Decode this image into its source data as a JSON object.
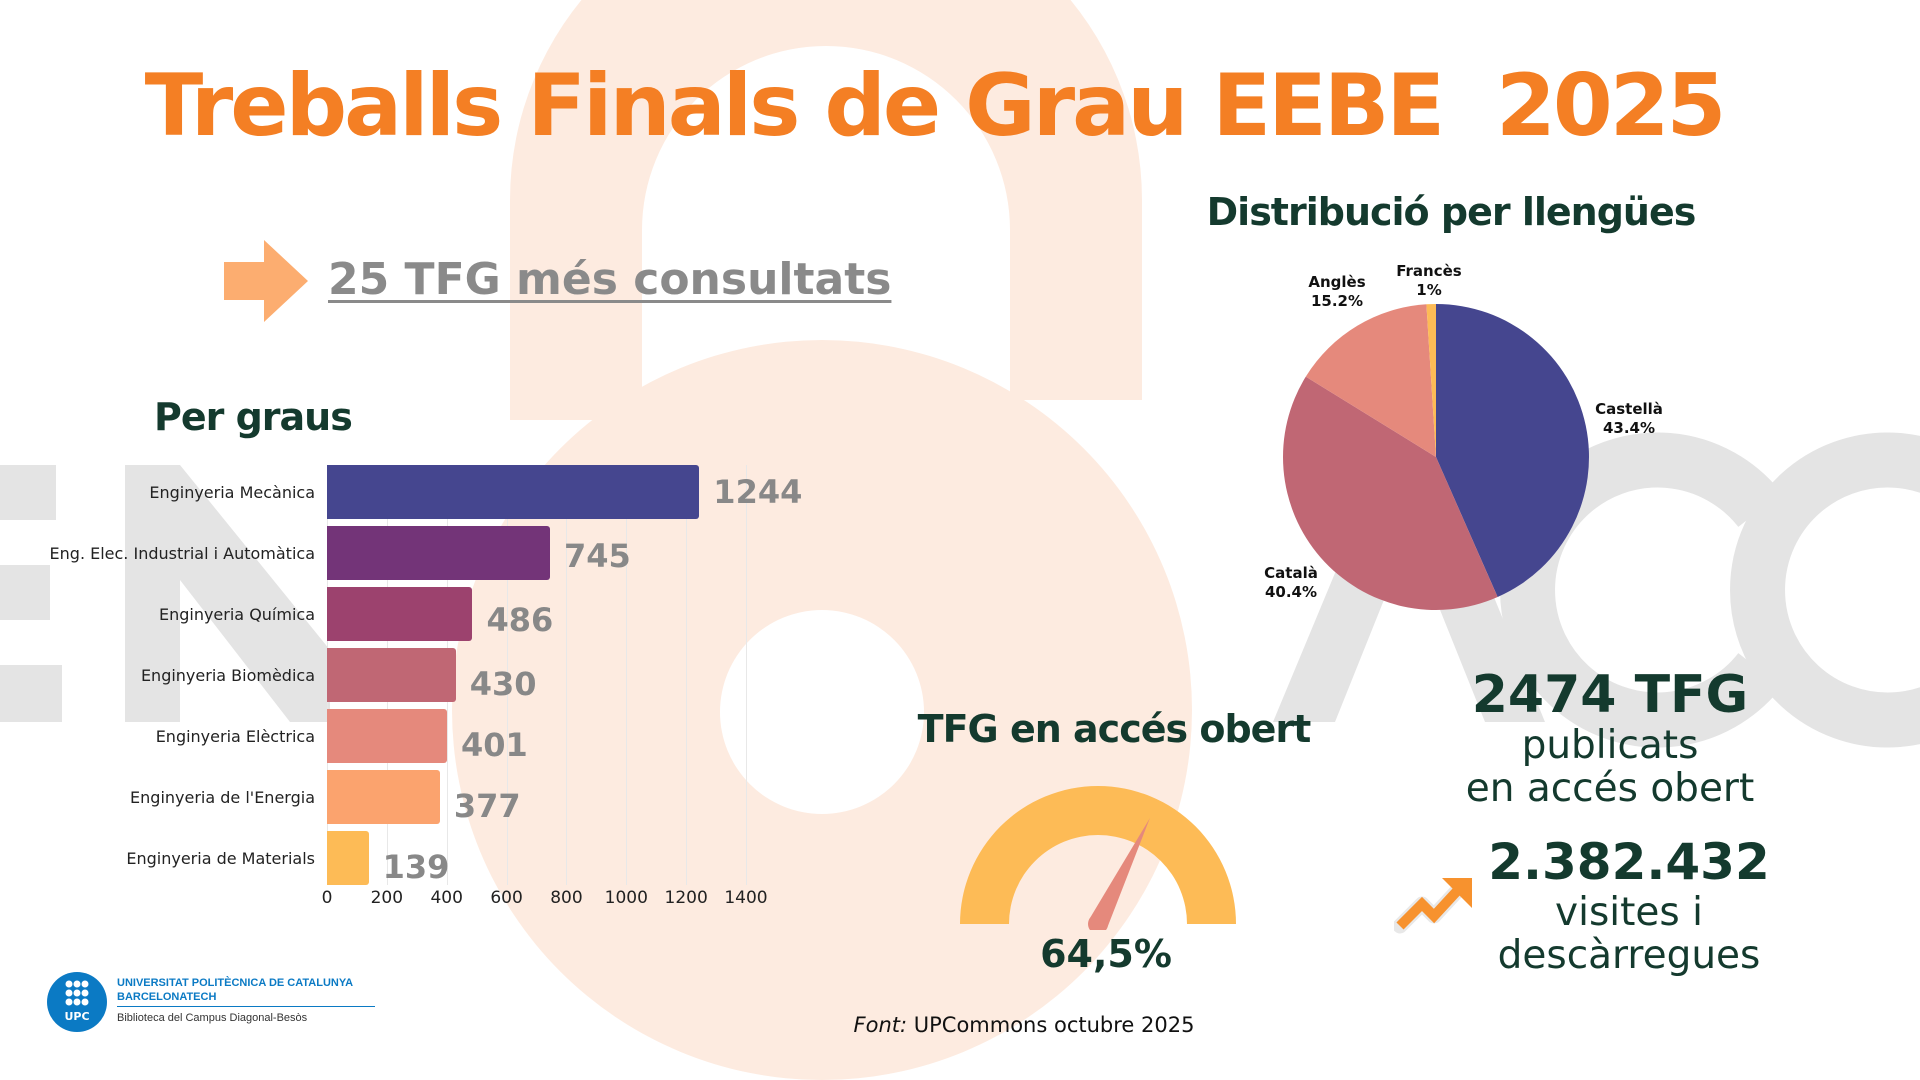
{
  "title": "Treballs Finals de Grau EEBE  2025",
  "watermark": {
    "left": "EN",
    "right": "ACC"
  },
  "top25_link": "25 TFG més consultats",
  "by_degree": {
    "title": "Per graus"
  },
  "languages": {
    "title": "Distribució per llengües"
  },
  "open_access": {
    "title": "TFG en accés obert",
    "value_label": "64,5%",
    "value": 64.5
  },
  "stats": {
    "published_count": "2474 TFG",
    "published_line1": "publicats",
    "published_line2": "en accés obert",
    "visits_count": "2.382.432",
    "visits_line1": "visites i",
    "visits_line2": "descàrregues"
  },
  "source": {
    "prefix": "Font:",
    "text": " UPCommons octubre 2025"
  },
  "logo": {
    "mark": "UPC",
    "line1": "UNIVERSITAT POLITÈCNICA DE CATALUNYA",
    "line2": "BARCELONATECH",
    "line3": "Biblioteca del Campus Diagonal-Besòs"
  },
  "colors": {
    "title": "#f47f24",
    "heading": "#143a2e",
    "gauge": "#fdbb56",
    "needle": "#e5897c",
    "watermark": "#fdebe0"
  },
  "chart_data": [
    {
      "type": "bar",
      "orientation": "horizontal",
      "categories": [
        "Enginyeria Mecànica",
        "Eng. Elec. Industrial i Automàtica",
        "Enginyeria Química",
        "Enginyeria Biomèdica",
        "Enginyeria Elèctrica",
        "Enginyeria de l'Energia",
        "Enginyeria de Materials"
      ],
      "values": [
        1244,
        745,
        486,
        430,
        401,
        377,
        139
      ],
      "value_labels": [
        "1244",
        "745",
        "486",
        "430",
        "401",
        "377",
        "139"
      ],
      "colors": [
        "#45468f",
        "#733478",
        "#9c426e",
        "#c06774",
        "#e5897c",
        "#fba36e",
        "#fdbb56"
      ],
      "xlim": [
        0,
        1400
      ],
      "xticks": [
        "0",
        "200",
        "400",
        "600",
        "800",
        "1000",
        "1200",
        "1400"
      ],
      "grid": true
    },
    {
      "type": "pie",
      "slices": [
        {
          "name": "Castellà",
          "value": 43.4,
          "label": "43.4%",
          "color": "#45468f"
        },
        {
          "name": "Català",
          "value": 40.4,
          "label": "40.4%",
          "color": "#c06774"
        },
        {
          "name": "Anglès",
          "value": 15.2,
          "label": "15.2%",
          "color": "#e5897c"
        },
        {
          "name": "Francès",
          "value": 1,
          "label": "1%",
          "color": "#fdbb56"
        }
      ]
    }
  ]
}
